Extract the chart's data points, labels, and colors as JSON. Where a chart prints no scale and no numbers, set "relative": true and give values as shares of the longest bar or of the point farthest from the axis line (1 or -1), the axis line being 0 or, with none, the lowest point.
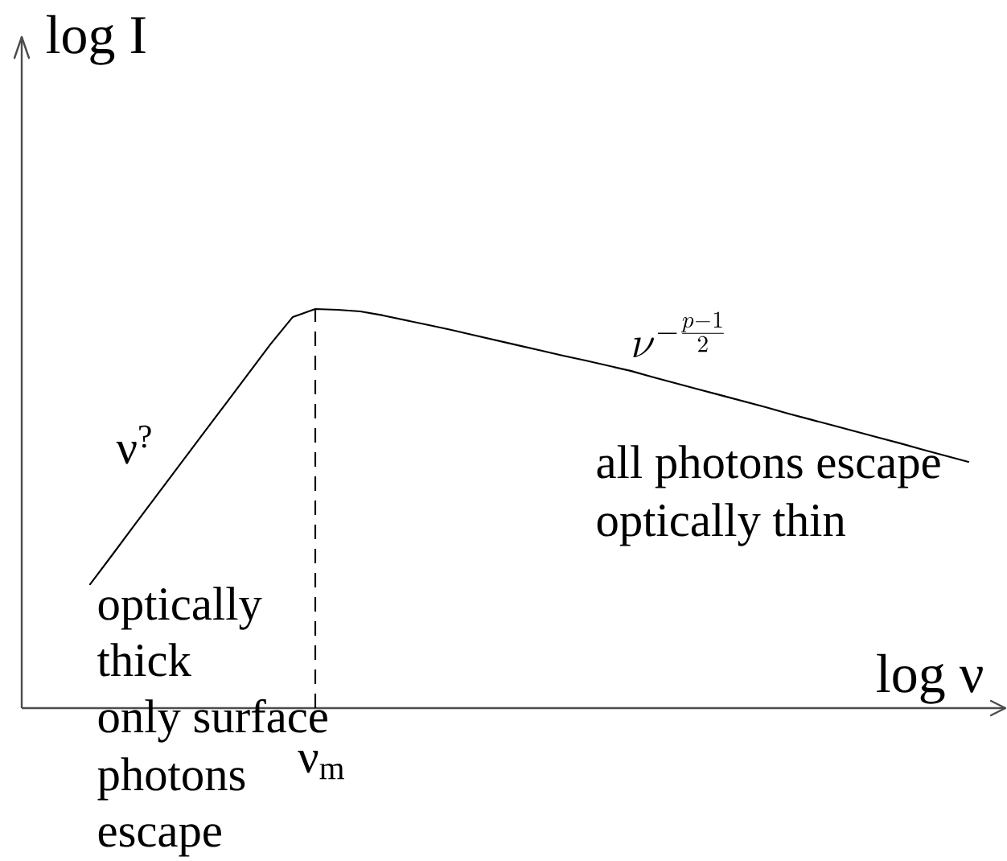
{
  "chart_data": {
    "type": "line",
    "relative": true,
    "xlabel": "log ν",
    "ylabel": "log I",
    "categories": [
      null,
      null,
      null,
      null,
      null,
      null,
      null,
      null,
      null,
      null,
      null,
      null,
      null,
      null,
      null,
      null,
      null,
      null,
      null,
      null,
      null,
      null,
      null,
      null,
      null,
      null,
      null,
      null,
      null,
      null,
      null,
      null,
      null,
      null,
      null,
      null,
      null,
      null,
      null,
      null
    ],
    "values": [
      0.31,
      0.385,
      0.461,
      0.536,
      0.611,
      0.686,
      0.761,
      0.836,
      0.911,
      0.98,
      1.0,
      0.998,
      0.994,
      0.984,
      0.972,
      0.96,
      0.948,
      0.935,
      0.922,
      0.909,
      0.896,
      0.883,
      0.871,
      0.858,
      0.845,
      0.829,
      0.814,
      0.799,
      0.784,
      0.769,
      0.754,
      0.738,
      0.723,
      0.708,
      0.693,
      0.678,
      0.663,
      0.647,
      0.632,
      0.617
    ],
    "color": "#000000",
    "line_style": "solid",
    "annotations": [
      "ν$^{?}$",
      "\\nu^{-\\frac{p-1}{2}}",
      "all photons escape",
      "optically thin",
      "optically",
      "thick",
      "only surface",
      "photons",
      "escape",
      "ν$_{m}$"
    ]
  }
}
